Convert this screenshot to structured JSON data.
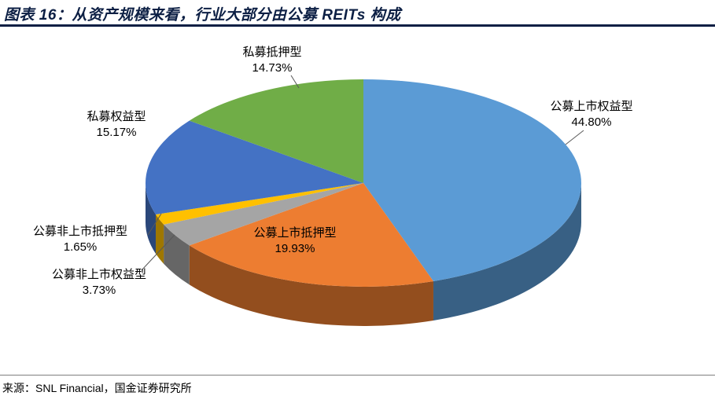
{
  "page": {
    "title": "图表 16：从资产规模来看，行业大部分由公募 REITs 构成",
    "source": "来源：SNL Financial，国金证券研究所"
  },
  "chart_data": {
    "type": "pie",
    "style": "3d",
    "title": "图表 16：从资产规模来看，行业大部分由公募 REITs 构成",
    "source": "来源：SNL Financial，国金证券研究所",
    "unit": "%",
    "start_angle_deg": 0,
    "direction": "clockwise",
    "legend": "none",
    "slices": [
      {
        "label": "公募上市权益型",
        "value": 44.8,
        "pct": "44.80%",
        "color": "#5B9BD5"
      },
      {
        "label": "公募上市抵押型",
        "value": 19.93,
        "pct": "19.93%",
        "color": "#ED7D31"
      },
      {
        "label": "公募非上市权益型",
        "value": 3.73,
        "pct": "3.73%",
        "color": "#A5A5A5"
      },
      {
        "label": "公募非上市抵押型",
        "value": 1.65,
        "pct": "1.65%",
        "color": "#FFC000"
      },
      {
        "label": "私募权益型",
        "value": 15.17,
        "pct": "15.17%",
        "color": "#4472C4"
      },
      {
        "label": "私募抵押型",
        "value": 14.73,
        "pct": "14.73%",
        "color": "#70AD47"
      }
    ]
  }
}
